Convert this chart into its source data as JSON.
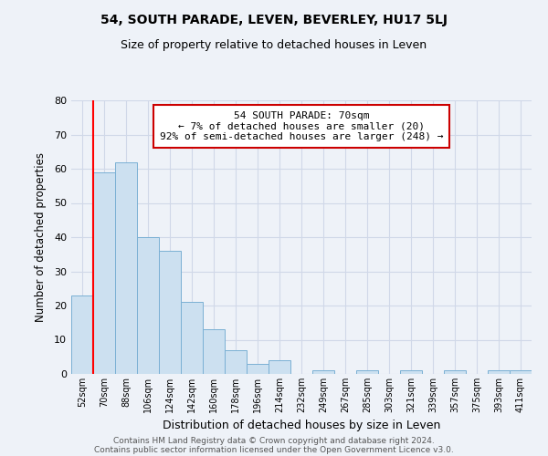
{
  "title": "54, SOUTH PARADE, LEVEN, BEVERLEY, HU17 5LJ",
  "subtitle": "Size of property relative to detached houses in Leven",
  "xlabel": "Distribution of detached houses by size in Leven",
  "ylabel": "Number of detached properties",
  "bar_labels": [
    "52sqm",
    "70sqm",
    "88sqm",
    "106sqm",
    "124sqm",
    "142sqm",
    "160sqm",
    "178sqm",
    "196sqm",
    "214sqm",
    "232sqm",
    "249sqm",
    "267sqm",
    "285sqm",
    "303sqm",
    "321sqm",
    "339sqm",
    "357sqm",
    "375sqm",
    "393sqm",
    "411sqm"
  ],
  "bar_values": [
    23,
    59,
    62,
    40,
    36,
    21,
    13,
    7,
    3,
    4,
    0,
    1,
    0,
    1,
    0,
    1,
    0,
    1,
    0,
    1,
    1
  ],
  "bar_color": "#cce0f0",
  "bar_edge_color": "#7ab0d4",
  "annotation_box_title": "54 SOUTH PARADE: 70sqm",
  "annotation_line1": "← 7% of detached houses are smaller (20)",
  "annotation_line2": "92% of semi-detached houses are larger (248) →",
  "redline_bar_index": 1,
  "ylim": [
    0,
    80
  ],
  "yticks": [
    0,
    10,
    20,
    30,
    40,
    50,
    60,
    70,
    80
  ],
  "footer1": "Contains HM Land Registry data © Crown copyright and database right 2024.",
  "footer2": "Contains public sector information licensed under the Open Government Licence v3.0.",
  "annotation_box_color": "#ffffff",
  "annotation_box_edge_color": "#cc0000",
  "annotation_text_color": "#000000",
  "grid_color": "#d0d8e8",
  "bg_color": "#eef2f8",
  "title_fontsize": 10,
  "subtitle_fontsize": 9
}
